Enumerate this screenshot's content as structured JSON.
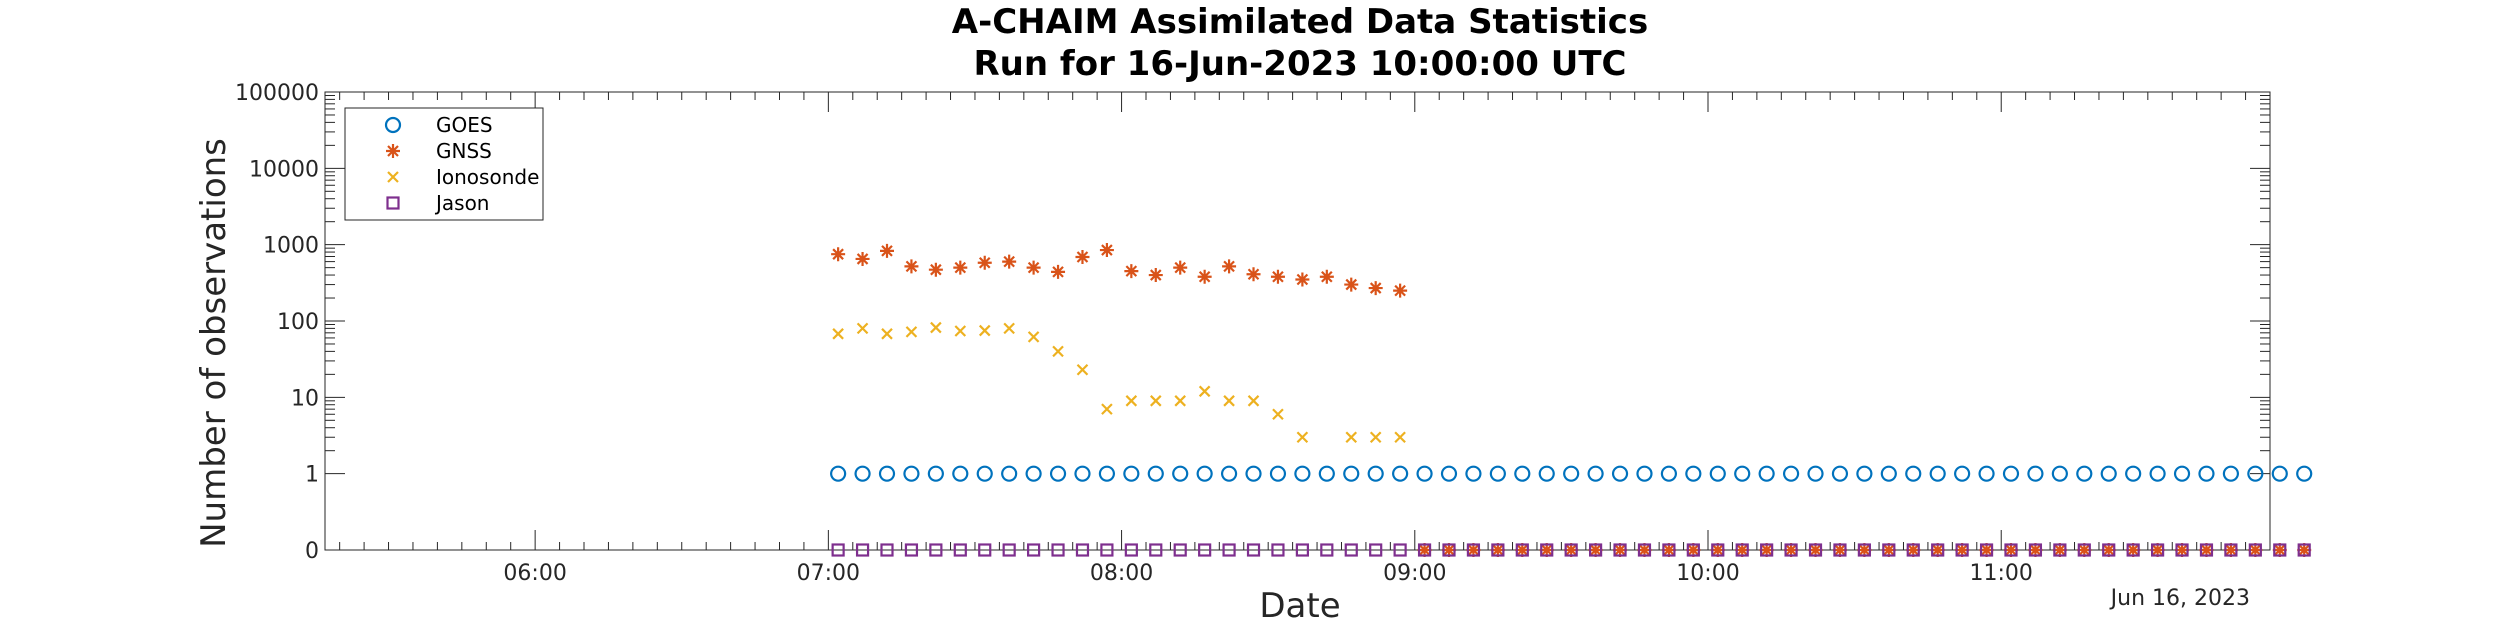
{
  "chart_data": {
    "type": "scatter",
    "title": [
      "A-CHAIM Assimilated Data Statistics",
      "Run for 16-Jun-2023 10:00:00 UTC"
    ],
    "xlabel": "Date",
    "ylabel": "Number of observations",
    "x_date_label": "Jun 16, 2023",
    "xlim": [
      "05:17",
      "11:55"
    ],
    "x_ticks": [
      "06:00",
      "07:00",
      "08:00",
      "09:00",
      "10:00",
      "11:00"
    ],
    "yscale": "log",
    "y_ticks": [
      "0",
      "1",
      "10",
      "100",
      "1000",
      "10000",
      "100000"
    ],
    "legend_position": "top-left",
    "grid": false,
    "series": [
      {
        "name": "GOES",
        "marker": "circle",
        "color": "#0072BD",
        "start": "07:02",
        "step_minutes": 5,
        "values": [
          1,
          1,
          1,
          1,
          1,
          1,
          1,
          1,
          1,
          1,
          1,
          1,
          1,
          1,
          1,
          1,
          1,
          1,
          1,
          1,
          1,
          1,
          1,
          1,
          1,
          1,
          1,
          1,
          1,
          1,
          1,
          1,
          1,
          1,
          1,
          1,
          1,
          1,
          1,
          1,
          1,
          1,
          1,
          1,
          1,
          1,
          1,
          1,
          1,
          1,
          1,
          1,
          1,
          1,
          1,
          1,
          1,
          1,
          1,
          1,
          1
        ]
      },
      {
        "name": "GNSS",
        "marker": "asterisk",
        "color": "#D95319",
        "start": "07:02",
        "step_minutes": 5,
        "values": [
          750,
          650,
          830,
          520,
          470,
          500,
          580,
          600,
          500,
          440,
          690,
          850,
          450,
          400,
          500,
          380,
          520,
          410,
          380,
          350,
          380,
          300,
          270,
          250,
          0,
          0,
          0,
          0,
          0,
          0,
          0,
          0,
          0,
          0,
          0,
          0,
          0,
          0,
          0,
          0,
          0,
          0,
          0,
          0,
          0,
          0,
          0,
          0,
          0,
          0,
          0,
          0,
          0,
          0,
          0,
          0,
          0,
          0,
          0,
          0,
          0
        ]
      },
      {
        "name": "Ionosonde",
        "marker": "x",
        "color": "#EDB120",
        "start": "07:02",
        "step_minutes": 5,
        "values": [
          68,
          80,
          68,
          72,
          82,
          74,
          75,
          80,
          62,
          40,
          23,
          7,
          9,
          9,
          9,
          12,
          9,
          9,
          6,
          3,
          null,
          3,
          3,
          3
        ]
      },
      {
        "name": "Jason",
        "marker": "square",
        "color": "#7E2F8E",
        "start": "07:02",
        "step_minutes": 5,
        "values": [
          0,
          0,
          0,
          0,
          0,
          0,
          0,
          0,
          0,
          0,
          0,
          0,
          0,
          0,
          0,
          0,
          0,
          0,
          0,
          0,
          0,
          0,
          0,
          0,
          0,
          0,
          0,
          0,
          0,
          0,
          0,
          0,
          0,
          0,
          0,
          0,
          0,
          0,
          0,
          0,
          0,
          0,
          0,
          0,
          0,
          0,
          0,
          0,
          0,
          0,
          0,
          0,
          0,
          0,
          0,
          0,
          0,
          0,
          0,
          0,
          0
        ]
      }
    ]
  }
}
